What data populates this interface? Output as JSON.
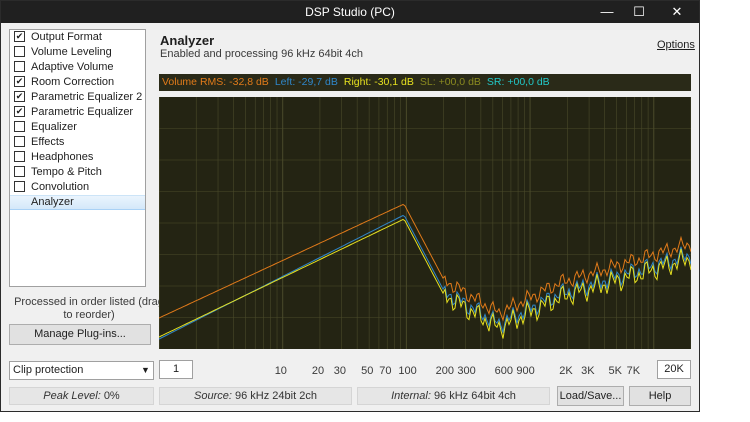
{
  "window": {
    "title": "DSP Studio (PC)"
  },
  "title_buttons": {
    "minimize": "—",
    "maximize": "☐",
    "close": "✕"
  },
  "plugins": [
    {
      "label": "Output Format",
      "checked": true
    },
    {
      "label": "Volume Leveling",
      "checked": false
    },
    {
      "label": "Adaptive Volume",
      "checked": false
    },
    {
      "label": "Room Correction",
      "checked": true
    },
    {
      "label": "Parametric Equalizer 2",
      "checked": true
    },
    {
      "label": "Parametric Equalizer",
      "checked": true
    },
    {
      "label": "Equalizer",
      "checked": false
    },
    {
      "label": "Effects",
      "checked": false
    },
    {
      "label": "Headphones",
      "checked": false
    },
    {
      "label": "Tempo & Pitch",
      "checked": false
    },
    {
      "label": "Convolution",
      "checked": false
    },
    {
      "label": "Analyzer",
      "selected": true
    }
  ],
  "order_note": "Processed in order listed (drag to reorder)",
  "manage_button": "Manage Plug-ins...",
  "clip": {
    "value": "Clip protection",
    "arrow": "▼"
  },
  "status": {
    "peak_label": "Peak Level:",
    "peak_value": "0%",
    "source_label": "Source:",
    "source_value": "96 kHz 24bit 2ch",
    "internal_label": "Internal:",
    "internal_value": "96 kHz 64bit 4ch"
  },
  "buttons": {
    "load_save": "Load/Save...",
    "help": "Help"
  },
  "header": {
    "title": "Analyzer",
    "subtitle": "Enabled and processing 96 kHz 64bit 4ch",
    "options": "Options"
  },
  "stats": [
    {
      "text": "Volume RMS: -32,8 dB",
      "color": "#e07a1a"
    },
    {
      "text": "Left: -29,7 dB",
      "color": "#2f86c9"
    },
    {
      "text": "Right: -30,1 dB",
      "color": "#e5e020"
    },
    {
      "text": "SL: +00,0 dB",
      "color": "#8a8a20"
    },
    {
      "text": "SR: +00,0 dB",
      "color": "#22c7c7"
    }
  ],
  "freq": {
    "min": "1",
    "max": "20K",
    "labels": [
      "10",
      "20",
      "30",
      "50",
      "70",
      "100",
      "200",
      "300",
      "600",
      "900",
      "2K",
      "3K",
      "5K",
      "7K"
    ]
  },
  "colors": {
    "plot_bg": "#242413",
    "grid": "#4a4a2a",
    "rms": "#e07a1a",
    "left": "#2f86c9",
    "right": "#e5e020"
  }
}
